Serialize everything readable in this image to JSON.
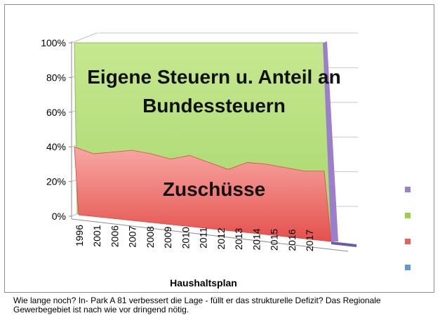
{
  "chart_data": {
    "type": "area",
    "stacked_percent": true,
    "three_d": true,
    "x": [
      "1996",
      "2001",
      "2006",
      "2007",
      "2008",
      "2009",
      "2010",
      "2011",
      "2012",
      "2013",
      "2014",
      "2015",
      "2016",
      "2017"
    ],
    "series": [
      {
        "name": "Zuschüsse",
        "color": "#f07a78",
        "values": [
          40,
          36,
          37,
          38,
          36,
          33,
          35,
          31,
          27,
          31,
          30,
          28,
          26,
          26
        ]
      },
      {
        "name": "Eigene Steuern u. Anteil an Bundessteuern",
        "color": "#b8df80",
        "values": [
          60,
          64,
          63,
          62,
          64,
          67,
          65,
          69,
          73,
          69,
          70,
          72,
          74,
          74
        ]
      }
    ],
    "yticks": [
      "0%",
      "20%",
      "40%",
      "60%",
      "80%",
      "100%"
    ],
    "ylim": [
      0,
      100
    ],
    "xlabel": "Haushaltsplan",
    "ylabel": "",
    "grid": true,
    "annotations": {
      "upper_line1": "Eigene Steuern u. Anteil an",
      "upper_line2": "Bundessteuern",
      "lower": "Zuschüsse"
    },
    "legend_markers": [
      {
        "color": "#9b7fcc"
      },
      {
        "color": "#9ad04a"
      },
      {
        "color": "#e8605c"
      },
      {
        "color": "#5b9bd5"
      }
    ],
    "legend_position": "right"
  },
  "caption": "Wie lange noch? In- Park A 81 verbessert die Lage - füllt er das strukturelle Defizit? Das Regionale Gewerbegebiet ist nach wie vor dringend nötig."
}
